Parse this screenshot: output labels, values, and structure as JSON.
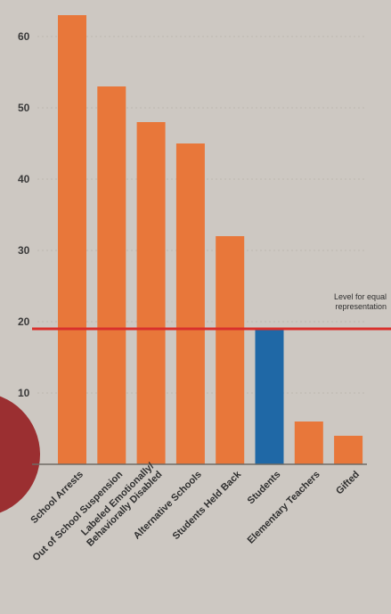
{
  "chart_data": {
    "type": "bar",
    "title": "",
    "xlabel": "",
    "ylabel": "",
    "ylim": [
      0,
      65
    ],
    "yticks": [
      10,
      20,
      30,
      40,
      50,
      60
    ],
    "categories": [
      [
        "School Arrests"
      ],
      [
        "Out of School Suspension"
      ],
      [
        "Labeled Emotionally/",
        "Behaviorally Disabled"
      ],
      [
        "Alternative Schools"
      ],
      [
        "Students Held Back"
      ],
      [
        "Students"
      ],
      [
        "Elementary Teachers"
      ],
      [
        "Gifted"
      ]
    ],
    "values": [
      63,
      53,
      48,
      45,
      32,
      19,
      6,
      4
    ],
    "bar_colors": [
      "#e8773a",
      "#e8773a",
      "#e8773a",
      "#e8773a",
      "#e8773a",
      "#1f68a6",
      "#e8773a",
      "#e8773a"
    ],
    "reference_line": {
      "value": 19,
      "color": "#d9302c",
      "label_lines": [
        "Level for equal",
        "representation"
      ]
    },
    "grid": true
  },
  "colors": {
    "background": "#cdc8c2",
    "decor_circle": "#9b2f31"
  }
}
